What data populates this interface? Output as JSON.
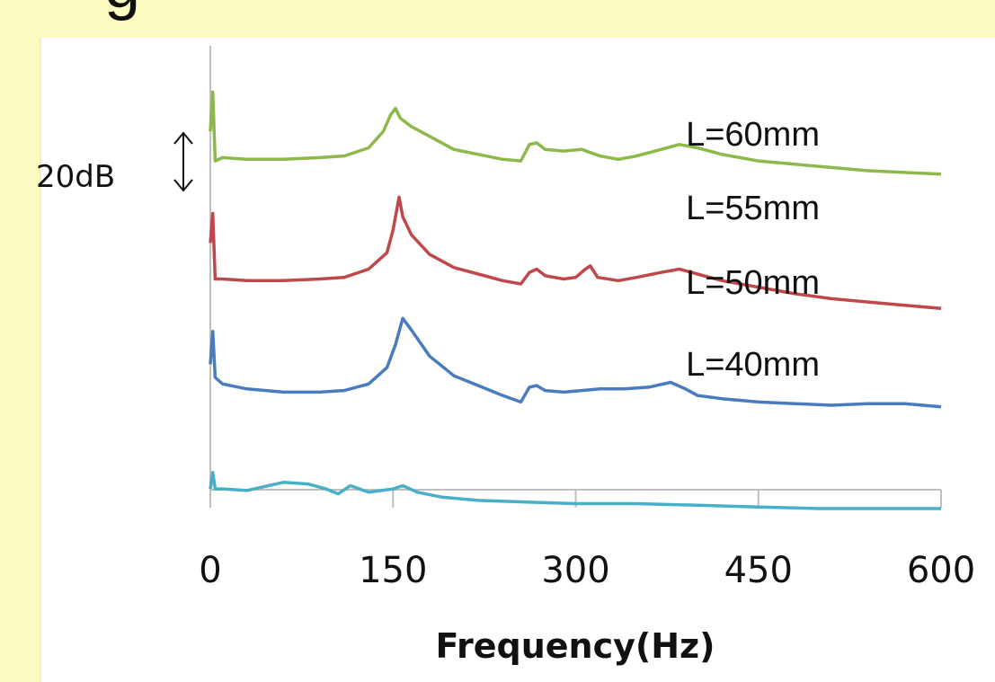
{
  "title_fragment": "g",
  "chart_data": {
    "type": "line",
    "xlabel": "Frequency(Hz)",
    "ylabel": "",
    "xlim": [
      0,
      600
    ],
    "xticks": [
      0,
      150,
      300,
      450,
      600
    ],
    "x_tick_labels": [
      "0",
      "150",
      "300",
      "450",
      "600"
    ],
    "grid": false,
    "scale_bar": {
      "label": "20dB",
      "value_db": 20
    },
    "db_per_unit": 1,
    "series": [
      {
        "name": "L=60mm",
        "color": "#8db84a",
        "x": [
          0,
          2,
          4,
          10,
          30,
          60,
          90,
          110,
          130,
          142,
          148,
          152,
          156,
          165,
          180,
          200,
          220,
          240,
          255,
          262,
          268,
          275,
          290,
          305,
          320,
          335,
          350,
          370,
          385,
          400,
          420,
          450,
          480,
          510,
          540,
          570,
          600
        ],
        "y": [
          -25,
          -13,
          -34,
          -33,
          -33.5,
          -33.5,
          -33,
          -32.5,
          -30,
          -25,
          -20,
          -18,
          -21,
          -23.5,
          -26.5,
          -30.5,
          -32,
          -33.5,
          -34,
          -29,
          -28.5,
          -30.5,
          -31,
          -30.5,
          -32.5,
          -33.5,
          -32.5,
          -30.5,
          -29,
          -30,
          -32,
          -34,
          -35,
          -36,
          -37,
          -37.5,
          -38
        ]
      },
      {
        "name": "L=55mm",
        "color": "#c0484a",
        "x": [
          0,
          2,
          4,
          10,
          30,
          60,
          90,
          110,
          130,
          145,
          150,
          155,
          158,
          165,
          180,
          200,
          220,
          240,
          255,
          262,
          268,
          275,
          290,
          300,
          308,
          312,
          318,
          335,
          350,
          370,
          385,
          400,
          420,
          450,
          480,
          510,
          540,
          570,
          600
        ],
        "y": [
          -59,
          -50,
          -70,
          -70,
          -70.5,
          -70.5,
          -70,
          -69.5,
          -67,
          -62,
          -55,
          -45,
          -51,
          -56.5,
          -62.5,
          -66.5,
          -68.5,
          -70.5,
          -71.5,
          -68,
          -67,
          -69,
          -70,
          -69.5,
          -67,
          -66,
          -69.5,
          -70.5,
          -69.5,
          -68,
          -67,
          -68.5,
          -70.5,
          -72.5,
          -74.5,
          -76,
          -77,
          -78,
          -79
        ]
      },
      {
        "name": "L=50mm",
        "color": "#4a7bbf",
        "x": [
          0,
          2,
          4,
          10,
          30,
          60,
          90,
          110,
          130,
          145,
          152,
          158,
          165,
          180,
          200,
          220,
          240,
          255,
          262,
          268,
          275,
          290,
          305,
          320,
          340,
          360,
          378,
          390,
          400,
          420,
          450,
          480,
          510,
          540,
          570,
          600
        ],
        "y": [
          -96,
          -86,
          -100,
          -102,
          -103.5,
          -104.5,
          -104.5,
          -104,
          -102,
          -97,
          -90,
          -82,
          -85.5,
          -93.5,
          -99.5,
          -102.5,
          -105.5,
          -107.5,
          -103,
          -102.5,
          -104,
          -104.5,
          -104,
          -103.5,
          -103.5,
          -103,
          -101.5,
          -103.5,
          -105.5,
          -106.5,
          -107.5,
          -108,
          -108.5,
          -108,
          -108,
          -109
        ]
      },
      {
        "name": "L=40mm",
        "color": "#48afc8",
        "x": [
          0,
          2,
          4,
          10,
          30,
          60,
          80,
          95,
          105,
          115,
          130,
          150,
          158,
          170,
          190,
          220,
          260,
          300,
          350,
          400,
          450,
          500,
          550,
          600
        ],
        "y": [
          -134,
          -129,
          -134,
          -134,
          -134.5,
          -132,
          -132.5,
          -134,
          -135.5,
          -133,
          -135,
          -134,
          -133,
          -135,
          -136.5,
          -137.5,
          -138,
          -138.5,
          -138.5,
          -139,
          -139.5,
          -140,
          -140,
          -140
        ]
      }
    ]
  }
}
